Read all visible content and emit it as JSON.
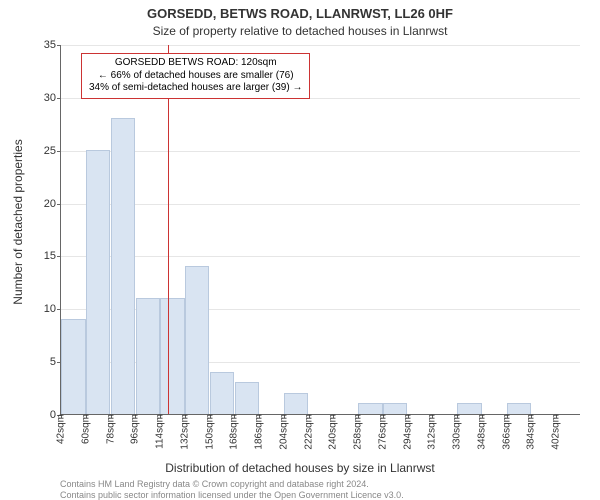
{
  "title": "GORSEDD, BETWS ROAD, LLANRWST, LL26 0HF",
  "subtitle": "Size of property relative to detached houses in Llanrwst",
  "title_fontsize": 13,
  "subtitle_fontsize": 12,
  "ylabel": "Number of detached properties",
  "xlabel": "Distribution of detached houses by size in Llanrwst",
  "axis_label_fontsize": 12,
  "type": "histogram",
  "background_color": "#ffffff",
  "grid_color": "#e6e6e6",
  "bar_fill": "#d9e4f2",
  "bar_stroke": "#b9c9de",
  "axis_color": "#666666",
  "tick_fontsize": 11,
  "ylim": [
    0,
    35
  ],
  "ytick_step": 5,
  "x_start": 42,
  "x_step": 18,
  "x_unit": "sqm",
  "values": [
    9,
    25,
    28,
    11,
    11,
    14,
    4,
    3,
    0,
    2,
    0,
    0,
    1,
    1,
    0,
    0,
    1,
    0,
    1,
    0,
    0
  ],
  "bar_width_ratio": 0.98,
  "marker_line": {
    "value_sqm": 120,
    "color": "#cc3333"
  },
  "annotation": {
    "lines": [
      "GORSEDD BETWS ROAD: 120sqm",
      "← 66% of detached houses are smaller (76)",
      "34% of semi-detached houses are larger (39) →"
    ],
    "border_color": "#cc3333",
    "fontsize": 10
  },
  "attribution": [
    "Contains HM Land Registry data © Crown copyright and database right 2024.",
    "Contains public sector information licensed under the Open Government Licence v3.0."
  ],
  "attribution_fontsize": 9,
  "attribution_color": "#888888"
}
